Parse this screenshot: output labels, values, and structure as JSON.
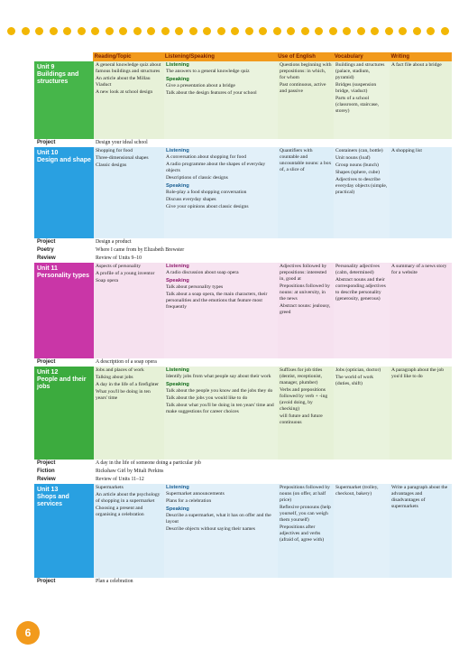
{
  "page_number": "6",
  "colors": {
    "dot": "#f2b705",
    "header": "#f29a1c",
    "unit9": "#46b64a",
    "unit10": "#29a0e1",
    "unit11": "#c936a7",
    "unit12": "#3cab3e",
    "unit13": "#29a0e1"
  },
  "header": [
    "Reading/Topic",
    "Listening/Speaking",
    "Use of English",
    "Vocabulary",
    "Writing"
  ],
  "unit9": {
    "title": "Unit 9\nBuildings and structures",
    "reading": [
      "A general knowledge quiz about famous buildings and structures",
      "An article about the Millau Viaduct",
      "A new look at school design"
    ],
    "listening_head": "Listening",
    "listening": [
      "The answers to a general knowledge quiz"
    ],
    "speaking_head": "Speaking",
    "speaking": [
      "Give a presentation about a bridge",
      "Talk about the design features of your school"
    ],
    "english": [
      "Questions beginning with prepositions: in which, for whom",
      "Past continuous, active and passive"
    ],
    "vocab": [
      "Buildings and structures (palace, stadium, pyramid)",
      "Bridges (suspension bridge, viaduct)",
      "Parts of a school (classroom, staircase, storey)"
    ],
    "writing": [
      "A fact file about a bridge"
    ]
  },
  "project9": {
    "label": "Project",
    "text": "Design your ideal school"
  },
  "unit10": {
    "title": "Unit 10\nDesign and shape",
    "reading": [
      "Shopping for food",
      "Three-dimensional shapes",
      "Classic designs"
    ],
    "listening_head": "Listening",
    "listening": [
      "A conversation about shopping for food",
      "A radio programme about the shapes of everyday objects",
      "Descriptions of classic designs"
    ],
    "speaking_head": "Speaking",
    "speaking": [
      "Role-play a food shopping conversation",
      "Discuss everyday shapes",
      "Give your opinions about classic designs"
    ],
    "english": [
      "Quantifiers with countable and uncountable nouns: a box of, a slice of"
    ],
    "vocab": [
      "Containers (can, bottle)",
      "Unit nouns (loaf)",
      "Group nouns (bunch)",
      "Shapes (sphere, cube)",
      "Adjectives to describe everyday objects (simple, practical)"
    ],
    "writing": [
      "A shopping list"
    ]
  },
  "between10": [
    {
      "label": "Project",
      "text": "Design a product"
    },
    {
      "label": "Poetry",
      "text": "Where I came from by Elizabeth Brewster"
    },
    {
      "label": "Review",
      "text": "Review of Units 9–10"
    }
  ],
  "unit11": {
    "title": "Unit 11\nPersonality types",
    "reading": [
      "Aspects of personality",
      "A profile of a young inventor",
      "Soap opera"
    ],
    "listening_head": "Listening",
    "listening": [
      "A radio discussion about soap opera"
    ],
    "speaking_head": "Speaking",
    "speaking": [
      "Talk about personality types",
      "Talk about a soap opera, the main characters, their personalities and the emotions that feature most frequently"
    ],
    "english": [
      "Adjectives followed by prepositions: interested in, good at",
      "Prepositions followed by nouns: at university, in the news",
      "Abstract nouns: jealousy, greed"
    ],
    "vocab": [
      "Personality adjectives (calm, determined)",
      "Abstract nouns and their corresponding adjectives to describe personality (generosity, generous)"
    ],
    "writing": [
      "A summary of a news story for a website"
    ]
  },
  "project11": {
    "label": "Project",
    "text": "A description of a soap opera"
  },
  "unit12": {
    "title": "Unit 12\nPeople and their jobs",
    "reading": [
      "Jobs and places of work",
      "Talking about jobs",
      "A day in the life of a firefighter",
      "What you'll be doing in ten years' time"
    ],
    "listening_head": "Listening",
    "listening": [
      "Identify jobs from what people say about their work"
    ],
    "speaking_head": "Speaking",
    "speaking": [
      "Talk about the people you know and the jobs they do",
      "Talk about the jobs you would like to do",
      "Talk about what you'll be doing in ten years' time and make suggestions for career choices"
    ],
    "english": [
      "Suffixes for job titles (dentist, receptionist, manager, plumber)",
      "Verbs and prepositions followed by verb + -ing (avoid doing, by checking)",
      "will future and future continuous"
    ],
    "vocab": [
      "Jobs (optician, doctor)",
      "The world of work (duties, shift)"
    ],
    "writing": [
      "A paragraph about the job you'd like to do"
    ]
  },
  "between12": [
    {
      "label": "Project",
      "text": "A day in the life of someone doing a particular job"
    },
    {
      "label": "Fiction",
      "text": "Rickshaw Girl by Mitali Perkins"
    },
    {
      "label": "Review",
      "text": "Review of Units 11–12"
    }
  ],
  "unit13": {
    "title": "Unit 13\nShops and services",
    "reading": [
      "Supermarkets",
      "An article about the psychology of shopping in a supermarket",
      "Choosing a present and organising a celebration"
    ],
    "listening_head": "Listening",
    "listening": [
      "Supermarket announcements",
      "Plans for a celebration"
    ],
    "speaking_head": "Speaking",
    "speaking": [
      "Describe a supermarket, what it has on offer and the layout",
      "Describe objects without saying their names"
    ],
    "english": [
      "Prepositions followed by nouns (on offer, at half price)",
      "Reflexive pronouns (help yourself, you can weigh them yourself)",
      "Prepositions after adjectives and verbs (afraid of, agree with)"
    ],
    "vocab": [
      "Supermarket (trolley, checkout, bakery)"
    ],
    "writing": [
      "Write a paragraph about the advantages and disadvantages of supermarkets"
    ]
  },
  "project13": {
    "label": "Project",
    "text": "Plan a celebration"
  }
}
